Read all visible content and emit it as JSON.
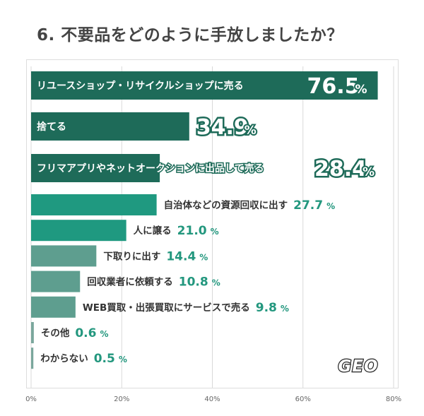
{
  "title": "6. 不要品をどのように手放しましたか？",
  "logo_text": "GEO",
  "colors": {
    "dark": "#1e6b59",
    "mid": "#1f9980",
    "light": "#5e9e8f",
    "value_mid": "#23977e",
    "label_text": "#333333",
    "grid": "#d9d9d9"
  },
  "chart_data": {
    "type": "bar",
    "orientation": "horizontal",
    "unit": "%",
    "xlim": [
      0,
      80
    ],
    "xticks": [
      "0%",
      "20%",
      "40%",
      "60%",
      "80%"
    ],
    "grid": true,
    "categories": [
      "リユースショップ・リサイクルショップに売る",
      "捨てる",
      "フリマアプリやネットオークションに出品して売る",
      "自治体などの資源回収に出す",
      "人に譲る",
      "下取りに出す",
      "回収業者に依頼する",
      "WEB買取・出張買取にサービスで売る",
      "その他",
      "わからない"
    ],
    "values": [
      76.5,
      34.9,
      28.4,
      27.7,
      21.0,
      14.4,
      10.8,
      9.8,
      0.6,
      0.5
    ],
    "value_labels": [
      "76.5",
      "34.9",
      "28.4",
      "27.7",
      "21.0",
      "14.4",
      "10.8",
      "9.8",
      "0.6",
      "0.5"
    ]
  }
}
